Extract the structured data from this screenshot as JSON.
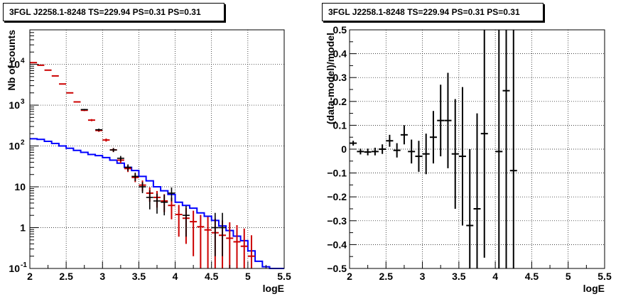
{
  "chart_data": [
    {
      "type": "line",
      "title": "3FGL J2258.1-8248 TS=229.94 PS=0.31 PS=0.31",
      "xlabel": "logE",
      "ylabel": "Nb of counts",
      "xlim": [
        2,
        5.5
      ],
      "ylim": [
        0.1,
        70000
      ],
      "yscale": "log",
      "grid": true,
      "xticks": [
        "2",
        "2.5",
        "3",
        "3.5",
        "4",
        "4.5",
        "5",
        "5.5"
      ],
      "yticks": [
        {
          "value": 0.1,
          "label": "10",
          "exp": "-1"
        },
        {
          "value": 1,
          "label": "1",
          "exp": ""
        },
        {
          "value": 10,
          "label": "10",
          "exp": ""
        },
        {
          "value": 100,
          "label": "10",
          "exp": "2"
        },
        {
          "value": 1000,
          "label": "10",
          "exp": "3"
        },
        {
          "value": 10000,
          "label": "10",
          "exp": "4"
        }
      ],
      "series": [
        {
          "color": "#0000ff",
          "kind": "step",
          "edges": [
            2,
            2.1,
            2.2,
            2.3,
            2.4,
            2.5,
            2.6,
            2.7,
            2.8,
            2.9,
            3,
            3.1,
            3.2,
            3.3,
            3.4,
            3.5,
            3.6,
            3.7,
            3.8,
            3.9,
            4,
            4.1,
            4.2,
            4.3,
            4.4,
            4.5,
            4.6,
            4.7,
            4.8,
            4.9,
            5,
            5.1,
            5.2,
            5.3,
            5.4,
            5.5
          ],
          "values": [
            150,
            145,
            130,
            115,
            100,
            88,
            78,
            70,
            62,
            58,
            52,
            45,
            38,
            30,
            25,
            18,
            14,
            10,
            8,
            6.5,
            4.2,
            3.5,
            3,
            2.3,
            1.9,
            1.5,
            1.1,
            0.85,
            0.62,
            0.48,
            0.27,
            0.15,
            0.11,
            0.1,
            0.1
          ]
        },
        {
          "color": "#cc0000",
          "kind": "model-points",
          "x": [
            2.05,
            2.15,
            2.25,
            2.35,
            2.45,
            2.55,
            2.65,
            2.75,
            2.85,
            2.95,
            3.05,
            3.15,
            3.25,
            3.35,
            3.45,
            3.55,
            3.65,
            3.75,
            3.85,
            3.95,
            4.05,
            4.15,
            4.25,
            4.35,
            4.45,
            4.55,
            4.65,
            4.75,
            4.85,
            4.95,
            5.05
          ],
          "y": [
            11000,
            9500,
            7200,
            5200,
            3300,
            2000,
            1200,
            750,
            430,
            240,
            140,
            80,
            45,
            28,
            17,
            11,
            7,
            5.5,
            4.5,
            3.5,
            2.1,
            1.7,
            1.4,
            1.05,
            0.88,
            0.75,
            0.65,
            0.55,
            0.45,
            0.35,
            0.2
          ],
          "err": [
            150,
            140,
            120,
            100,
            80,
            60,
            45,
            35,
            25,
            18,
            12,
            9,
            7,
            5,
            4,
            3.3,
            2.7,
            2.4,
            2.1,
            1.9,
            1.5,
            1.3,
            1.2,
            1.0,
            0.95,
            0.9,
            0.85,
            0.8,
            0.7,
            0.6,
            0.45
          ]
        },
        {
          "color": "#000000",
          "kind": "data-points",
          "x": [
            2.75,
            2.95,
            3.15,
            3.25,
            3.35,
            3.45,
            3.55,
            3.65,
            3.75,
            3.85,
            3.95,
            4.15,
            4.55,
            4.65
          ],
          "y": [
            780,
            250,
            80,
            50,
            30,
            18,
            10,
            5.5,
            4.5,
            4.2,
            7,
            2,
            1,
            1
          ],
          "err_lo": [
            28,
            16,
            9,
            7,
            5.5,
            4.2,
            3,
            2.7,
            2.3,
            2.2,
            2.6,
            1.4,
            0.8,
            0.8
          ],
          "err_hi": [
            28,
            16,
            9,
            7,
            5.5,
            4.2,
            3,
            2.7,
            2.3,
            2.2,
            2.6,
            1.4,
            1.3,
            1.3
          ]
        }
      ]
    },
    {
      "type": "scatter",
      "title": "3FGL J2258.1-8248 TS=229.94 PS=0.31 PS=0.31",
      "xlabel": "logE",
      "ylabel": "(data-model)/model",
      "xlim": [
        2,
        5.5
      ],
      "ylim": [
        -0.5,
        0.5
      ],
      "grid": true,
      "xticks": [
        "2",
        "2.5",
        "3",
        "3.5",
        "4",
        "4.5",
        "5",
        "5.5"
      ],
      "yticks": [
        "-0.5",
        "-0.4",
        "-0.3",
        "-0.2",
        "-0.1",
        "0",
        "0.1",
        "0.2",
        "0.3",
        "0.4",
        "0.5"
      ],
      "series": [
        {
          "color": "#000000",
          "x": [
            2.05,
            2.15,
            2.25,
            2.35,
            2.45,
            2.55,
            2.65,
            2.75,
            2.85,
            2.95,
            3.05,
            3.15,
            3.25,
            3.35,
            3.45,
            3.55,
            3.65,
            3.75,
            3.85,
            4.05,
            4.15,
            4.25
          ],
          "y": [
            0.025,
            -0.01,
            -0.012,
            -0.01,
            0.0,
            0.035,
            -0.005,
            0.06,
            -0.01,
            -0.03,
            -0.02,
            0.05,
            0.12,
            0.12,
            -0.02,
            -0.03,
            -0.32,
            -0.25,
            0.065,
            -0.01,
            0.245,
            -0.09
          ],
          "err": [
            0.01,
            0.012,
            0.014,
            0.016,
            0.02,
            0.025,
            0.03,
            0.04,
            0.05,
            0.065,
            0.085,
            0.11,
            0.15,
            0.2,
            0.23,
            0.29,
            0.32,
            0.4,
            0.52,
            0.8,
            0.9,
            1.0
          ]
        }
      ]
    }
  ]
}
